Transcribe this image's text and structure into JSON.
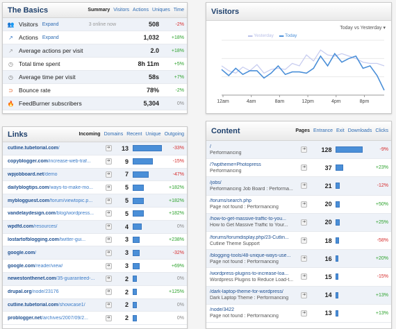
{
  "basics": {
    "title": "The Basics",
    "tabs": [
      "Summary",
      "Visitors",
      "Actions",
      "Uniques",
      "Time"
    ],
    "rows": [
      {
        "label": "Visitors",
        "expand": "Expand",
        "note": "3 online now",
        "value": "508",
        "change": "-2%",
        "dir": "neg",
        "icon": "visitors-icon"
      },
      {
        "label": "Actions",
        "expand": "Expand",
        "note": "",
        "value": "1,032",
        "change": "+18%",
        "dir": "pos",
        "icon": "actions-icon"
      },
      {
        "label": "Average actions per visit",
        "expand": "",
        "note": "",
        "value": "2.0",
        "change": "+18%",
        "dir": "pos",
        "icon": "average-actions-icon"
      },
      {
        "label": "Total time spent",
        "expand": "",
        "note": "",
        "value": "8h 11m",
        "change": "+5%",
        "dir": "pos",
        "icon": "clock-icon"
      },
      {
        "label": "Average time per visit",
        "expand": "",
        "note": "",
        "value": "58s",
        "change": "+7%",
        "dir": "pos",
        "icon": "clock-icon"
      },
      {
        "label": "Bounce rate",
        "expand": "",
        "note": "",
        "value": "78%",
        "change": "-2%",
        "dir": "pos",
        "icon": "bounce-icon"
      },
      {
        "label": "FeedBurner subscribers",
        "expand": "",
        "note": "",
        "value": "5,304",
        "change": "0%",
        "dir": "neu",
        "icon": "feedburner-icon"
      }
    ]
  },
  "visitors": {
    "title": "Visitors",
    "compare": "Today vs Yesterday ▾"
  },
  "chart_data": {
    "type": "line",
    "x_ticks": [
      "12am",
      "4am",
      "8am",
      "12pm",
      "4pm",
      "8pm"
    ],
    "ylim": [
      0,
      45
    ],
    "series": [
      {
        "name": "Yesterday",
        "color": "#c8cdf0",
        "values": [
          24,
          20,
          18,
          23,
          20,
          25,
          18,
          21,
          22,
          21,
          26,
          24,
          33,
          28,
          37,
          33,
          32,
          34,
          32,
          30,
          27,
          26,
          26,
          24
        ]
      },
      {
        "name": "Today",
        "color": "#4a8fd8",
        "values": [
          21,
          16,
          22,
          17,
          20,
          20,
          14,
          18,
          24,
          17,
          19,
          19,
          18,
          22,
          32,
          24,
          34,
          27,
          30,
          32,
          22,
          24,
          16,
          4
        ]
      }
    ]
  },
  "links": {
    "title": "Links",
    "tabs": [
      "Incoming",
      "Domains",
      "Recent",
      "Unique",
      "Outgoing"
    ],
    "max": 13,
    "rows": [
      {
        "domain": "cutline.tubetorial.com",
        "path": "/",
        "count": 13,
        "change": "-33%",
        "dir": "neg"
      },
      {
        "domain": "copyblogger.com",
        "path": "/increase-web-traf...",
        "count": 9,
        "change": "-15%",
        "dir": "neg"
      },
      {
        "domain": "wpjobboard.net",
        "path": "/demo",
        "count": 7,
        "change": "-47%",
        "dir": "neg"
      },
      {
        "domain": "dailyblogtips.com",
        "path": "/ways-to-make-mo...",
        "count": 5,
        "change": "+182%",
        "dir": "pos"
      },
      {
        "domain": "myblogguest.com",
        "path": "/forum/viewtopic.p...",
        "count": 5,
        "change": "+182%",
        "dir": "pos"
      },
      {
        "domain": "vandelaydesign.com",
        "path": "/blog/wordpress...",
        "count": 5,
        "change": "+182%",
        "dir": "pos"
      },
      {
        "domain": "wpdfd.com",
        "path": "/resources/",
        "count": 4,
        "change": "0%",
        "dir": "neu"
      },
      {
        "domain": "lostartofblogging.com",
        "path": "/twitter-gui...",
        "count": 3,
        "change": "+238%",
        "dir": "pos"
      },
      {
        "domain": "google.com",
        "path": "/",
        "count": 3,
        "change": "-32%",
        "dir": "neg"
      },
      {
        "domain": "google.com",
        "path": "/reader/view/",
        "count": 3,
        "change": "+69%",
        "dir": "pos"
      },
      {
        "domain": "newestonthenet.com",
        "path": "/35-guaranteed-...",
        "count": 2,
        "change": "0%",
        "dir": "neu"
      },
      {
        "domain": "drupal.org",
        "path": "/node/23176",
        "count": 2,
        "change": "+125%",
        "dir": "pos"
      },
      {
        "domain": "cutline.tubetorial.com",
        "path": "/showcase1/",
        "count": 2,
        "change": "0%",
        "dir": "neu"
      },
      {
        "domain": "problogger.net",
        "path": "/archives/2007/09/2...",
        "count": 2,
        "change": "0%",
        "dir": "neu"
      }
    ]
  },
  "content": {
    "title": "Content",
    "tabs": [
      "Pages",
      "Entrance",
      "Exit",
      "Downloads",
      "Clicks"
    ],
    "max": 128,
    "rows": [
      {
        "url": "/",
        "title": "Performancing",
        "count": 128,
        "change": "-9%",
        "dir": "neg"
      },
      {
        "url": "/?wptheme=Photopress",
        "title": "Performancing",
        "count": 37,
        "change": "+23%",
        "dir": "pos"
      },
      {
        "url": "/jobs/",
        "title": "Performancing Job Board : Performa...",
        "count": 21,
        "change": "-12%",
        "dir": "neg"
      },
      {
        "url": "/forums/search.php",
        "title": "Page not found : Performancing",
        "count": 20,
        "change": "+50%",
        "dir": "pos"
      },
      {
        "url": "/how-to-get-massive-traffic-to-you...",
        "title": "How to Get Massive Traffic to Your...",
        "count": 20,
        "change": "+25%",
        "dir": "pos"
      },
      {
        "url": "/forums/forumdisplay.php/23-Cutlin...",
        "title": "Cutline Theme Support",
        "count": 18,
        "change": "-58%",
        "dir": "neg"
      },
      {
        "url": "/blogging-tools/48-unique-ways-use...",
        "title": "Page not found : Performancing",
        "count": 16,
        "change": "+20%",
        "dir": "pos"
      },
      {
        "url": "/wordpress-plugins-to-increase-loa...",
        "title": "Wordpress Plugins to Reduce Load-t...",
        "count": 15,
        "change": "-15%",
        "dir": "neg"
      },
      {
        "url": "/dark-laptop-theme-for-wordpress/",
        "title": "Dark Laptop Theme : Performancing",
        "count": 14,
        "change": "+13%",
        "dir": "pos"
      },
      {
        "url": "/node/3422",
        "title": "Page not found : Performancing",
        "count": 13,
        "change": "+13%",
        "dir": "pos"
      }
    ]
  }
}
